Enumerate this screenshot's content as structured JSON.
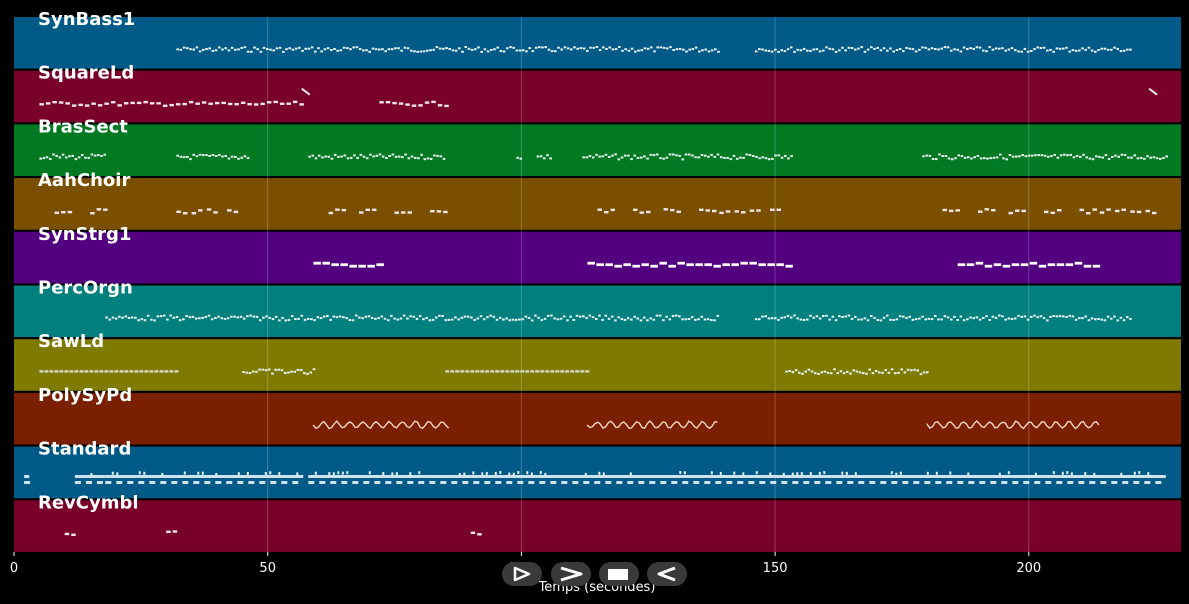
{
  "chart_data": {
    "type": "piano-roll",
    "xlabel": "Temps (secondes)",
    "xlim": [
      0,
      230
    ],
    "xticks": [
      0,
      50,
      100,
      150,
      200
    ],
    "grid": true,
    "tracks": [
      {
        "name": "SynBass1",
        "color": "#005a87",
        "segments": [
          [
            32,
            139
          ],
          [
            146,
            220
          ]
        ],
        "style": "dense-small"
      },
      {
        "name": "SquareLd",
        "color": "#7a002c",
        "segments": [
          [
            5,
            57
          ],
          [
            72,
            86
          ]
        ],
        "style": "dashes",
        "extras": [
          57.5,
          224.5
        ]
      },
      {
        "name": "BrasSect",
        "color": "#007a22",
        "segments": [
          [
            5,
            18
          ],
          [
            32,
            46
          ],
          [
            58,
            85
          ],
          [
            99,
            100
          ],
          [
            103,
            106
          ],
          [
            112,
            153
          ],
          [
            179,
            227
          ]
        ],
        "style": "dense-small"
      },
      {
        "name": "AahChoir",
        "color": "#7a5000",
        "segments": [
          [
            8,
            11
          ],
          [
            15,
            18
          ],
          [
            32,
            34
          ],
          [
            35,
            37
          ],
          [
            38,
            40
          ],
          [
            42,
            44
          ],
          [
            62,
            65
          ],
          [
            68,
            71
          ],
          [
            75,
            78
          ],
          [
            82,
            85
          ],
          [
            115,
            118
          ],
          [
            122,
            125
          ],
          [
            128,
            131
          ],
          [
            135,
            138
          ],
          [
            139,
            141
          ],
          [
            142,
            144
          ],
          [
            145,
            147
          ],
          [
            149,
            151
          ],
          [
            183,
            186
          ],
          [
            190,
            193
          ],
          [
            196,
            199
          ],
          [
            203,
            206
          ],
          [
            210,
            213
          ],
          [
            214,
            216
          ],
          [
            217,
            219
          ],
          [
            220,
            222
          ],
          [
            223,
            225
          ]
        ],
        "style": "dashes"
      },
      {
        "name": "SynStrg1",
        "color": "#520080",
        "segments": [
          [
            59,
            72
          ],
          [
            113,
            153
          ],
          [
            186,
            214
          ]
        ],
        "style": "long-dashes"
      },
      {
        "name": "PercOrgn",
        "color": "#007f7f",
        "segments": [
          [
            18,
            139
          ],
          [
            146,
            220
          ]
        ],
        "style": "dense-small"
      },
      {
        "name": "SawLd",
        "color": "#7f7a00",
        "segments": [
          [
            5,
            32
          ],
          [
            45,
            59
          ],
          [
            85,
            113
          ],
          [
            152,
            180
          ]
        ],
        "style": "mixed"
      },
      {
        "name": "PolySyPd",
        "color": "#7a2000",
        "segments": [
          [
            59,
            86
          ],
          [
            113,
            139
          ],
          [
            180,
            214
          ]
        ],
        "style": "wave"
      },
      {
        "name": "Standard",
        "color": "#005a87",
        "segments": [
          [
            2,
            3
          ],
          [
            12,
            18
          ],
          [
            18,
            57
          ],
          [
            58,
            227
          ]
        ],
        "style": "drums"
      },
      {
        "name": "RevCymbl",
        "color": "#7a002c",
        "segments": [
          [
            10,
            12
          ],
          [
            30,
            32
          ],
          [
            90,
            92
          ]
        ],
        "style": "dashes"
      }
    ]
  },
  "controls": [
    {
      "name": "play-forward-icon"
    },
    {
      "name": "fast-forward-icon"
    },
    {
      "name": "stop-icon"
    },
    {
      "name": "rewind-icon"
    }
  ]
}
